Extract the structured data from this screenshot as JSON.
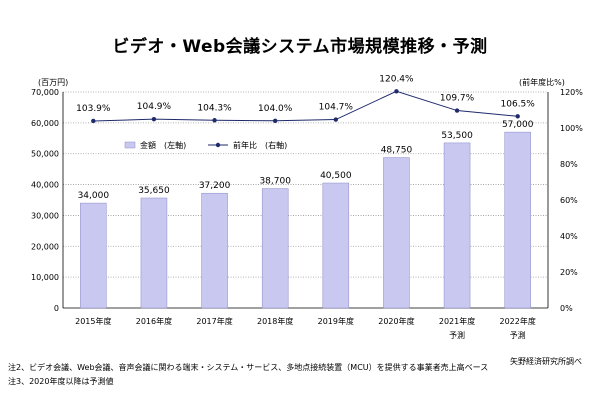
{
  "title": "ビデオ・Web会議システム市場規模推移・予測",
  "left_unit": "(百万円)",
  "right_unit": "(前年度比%)",
  "notes": [
    "注2、ビデオ会議、Web会議、音声会議に関わる端末・システム・サービス、多地点接続装置（MCU）を提供する事業者売上高ベース",
    "注3、2020年度以降は予測値"
  ],
  "source": "矢野経済研究所調べ",
  "chart_data": {
    "type": "bar",
    "categories": [
      "2015年度",
      "2016年度",
      "2017年度",
      "2018年度",
      "2019年度",
      "2020年度",
      "2021年度",
      "2022年度"
    ],
    "forecast_labels": [
      "",
      "",
      "",
      "",
      "",
      "",
      "予測",
      "予測"
    ],
    "left_axis": {
      "min": 0,
      "max": 70000,
      "step": 10000,
      "tick_labels": [
        "0",
        "10,000",
        "20,000",
        "30,000",
        "40,000",
        "50,000",
        "60,000",
        "70,000"
      ]
    },
    "right_axis": {
      "min": 0,
      "max": 120,
      "step": 20,
      "tick_labels": [
        "0%",
        "20%",
        "40%",
        "60%",
        "80%",
        "100%",
        "120%"
      ]
    },
    "series": [
      {
        "name": "金額　(左軸)",
        "kind": "bar",
        "axis": "left",
        "values": [
          34000,
          35650,
          37200,
          38700,
          40500,
          48750,
          53500,
          57000
        ],
        "labels": [
          "34,000",
          "35,650",
          "37,200",
          "38,700",
          "40,500",
          "48,750",
          "53,500",
          "57,000"
        ],
        "color": "#c9c8f0"
      },
      {
        "name": "前年比　(右軸)",
        "kind": "line",
        "axis": "right",
        "values": [
          103.9,
          104.9,
          104.3,
          104.0,
          104.7,
          120.4,
          109.7,
          106.5
        ],
        "labels": [
          "103.9%",
          "104.9%",
          "104.3%",
          "104.0%",
          "104.7%",
          "120.4%",
          "109.7%",
          "106.5%"
        ],
        "color": "#1f2a6b"
      }
    ],
    "legend_position": "inside-top",
    "grid": "horizontal"
  }
}
